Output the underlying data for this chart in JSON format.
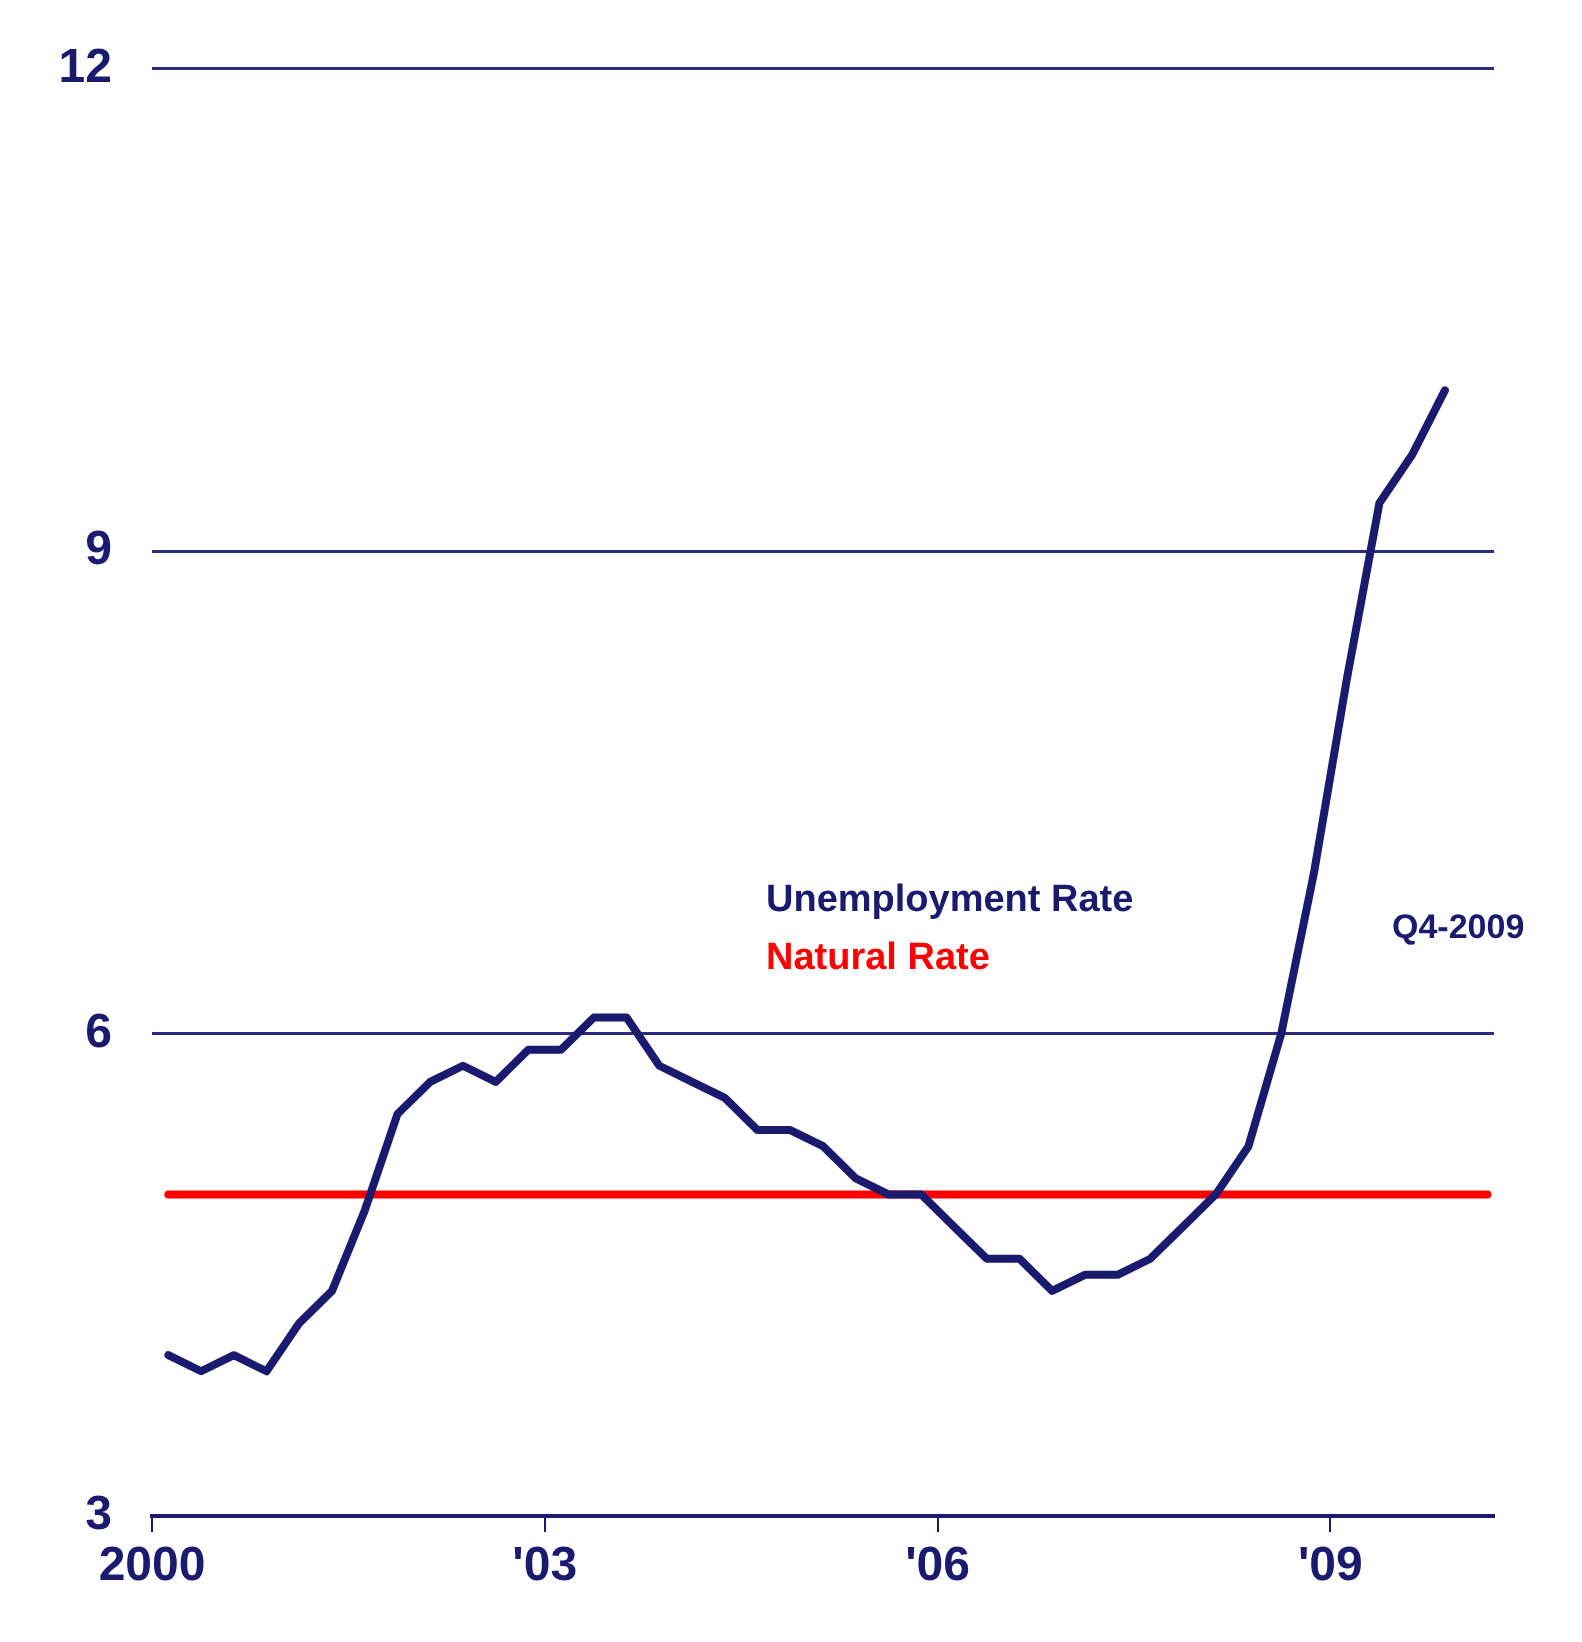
{
  "chart_data": {
    "type": "line",
    "x": [
      2000.125,
      2000.375,
      2000.625,
      2000.875,
      2001.125,
      2001.375,
      2001.625,
      2001.875,
      2002.125,
      2002.375,
      2002.625,
      2002.875,
      2003.125,
      2003.375,
      2003.625,
      2003.875,
      2004.125,
      2004.375,
      2004.625,
      2004.875,
      2005.125,
      2005.375,
      2005.625,
      2005.875,
      2006.125,
      2006.375,
      2006.625,
      2006.875,
      2007.125,
      2007.375,
      2007.625,
      2007.875,
      2008.125,
      2008.375,
      2008.625,
      2008.875,
      2009.125,
      2009.375,
      2009.625,
      2009.875
    ],
    "series": [
      {
        "name": "Unemployment Rate",
        "color": "#1a1a6e",
        "values": [
          4.0,
          3.9,
          4.0,
          3.9,
          4.2,
          4.4,
          4.9,
          5.5,
          5.7,
          5.8,
          5.7,
          5.9,
          5.9,
          6.1,
          6.1,
          5.8,
          5.7,
          5.6,
          5.4,
          5.4,
          5.3,
          5.1,
          5.0,
          5.0,
          4.8,
          4.6,
          4.6,
          4.4,
          4.5,
          4.5,
          4.6,
          4.8,
          5.0,
          5.3,
          6.0,
          7.0,
          8.2,
          9.3,
          9.6,
          10.0
        ]
      },
      {
        "name": "Natural Rate",
        "color": "#ff0000",
        "x": [
          2000.125,
          2010.2
        ],
        "values": [
          5.0,
          5.0
        ]
      }
    ],
    "xlim": [
      2000,
      2010.25
    ],
    "xticks": [
      2000,
      {
        "value": 2003,
        "label": "'03"
      },
      {
        "value": 2006,
        "label": "'06"
      },
      {
        "value": 2009,
        "label": "'09"
      }
    ],
    "ylim": [
      3,
      12
    ],
    "yticks": [
      3,
      6,
      9,
      12
    ],
    "grid": "y",
    "marker": "none",
    "line_style": "solid",
    "annotations": [
      "Q4-2009"
    ]
  }
}
